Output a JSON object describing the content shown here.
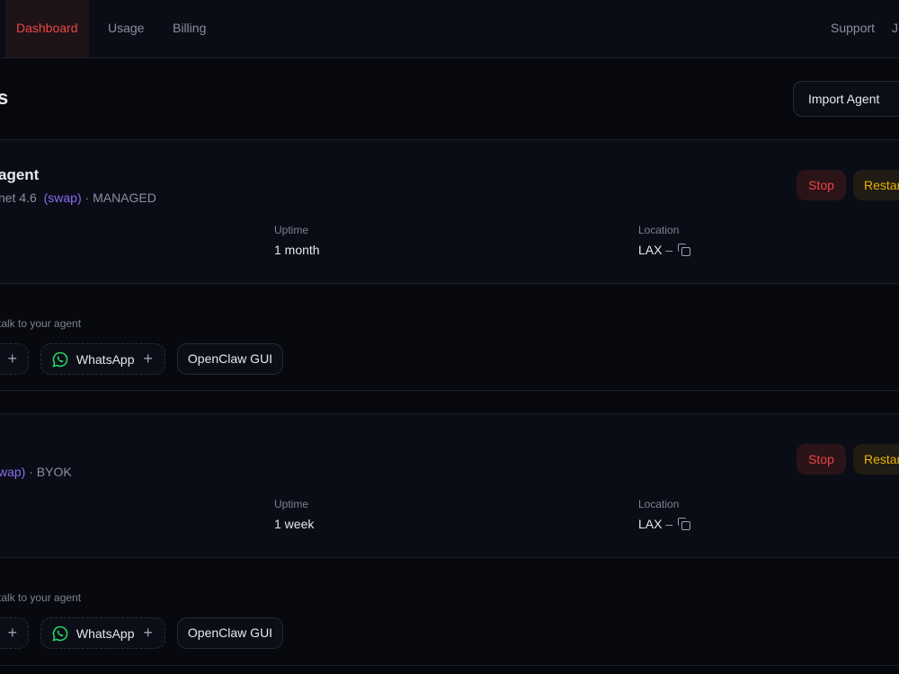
{
  "nav": {
    "items": [
      "Dashboard",
      "Usage",
      "Billing"
    ],
    "active": "Dashboard",
    "support": "Support",
    "user_initial": "J"
  },
  "page": {
    "title_fragment": "s",
    "import_label": "Import Agent"
  },
  "agents": [
    {
      "name_fragment": "agent",
      "model_fragment": "net 4.6",
      "swap": "(swap)",
      "plan": "· MANAGED",
      "stop": "Stop",
      "restart": "Restar",
      "uptime_label": "Uptime",
      "uptime": "1 month",
      "location_label": "Location",
      "location": "LAX",
      "location_sep": "–",
      "channels_hint": "talk to your agent",
      "whatsapp": "WhatsApp",
      "gui": "OpenClaw GUI",
      "plus": "+"
    },
    {
      "name_fragment": "",
      "model_fragment": "",
      "swap": "wap)",
      "plan": "· BYOK",
      "stop": "Stop",
      "restart": "Restar",
      "uptime_label": "Uptime",
      "uptime": "1 week",
      "location_label": "Location",
      "location": "LAX",
      "location_sep": "–",
      "channels_hint": "talk to your agent",
      "whatsapp": "WhatsApp",
      "gui": "OpenClaw GUI",
      "plus": "+"
    }
  ],
  "colors": {
    "accent": "#ef4444",
    "warn": "#eab308",
    "swap": "#8b6cf0",
    "whatsapp": "#25d366"
  }
}
